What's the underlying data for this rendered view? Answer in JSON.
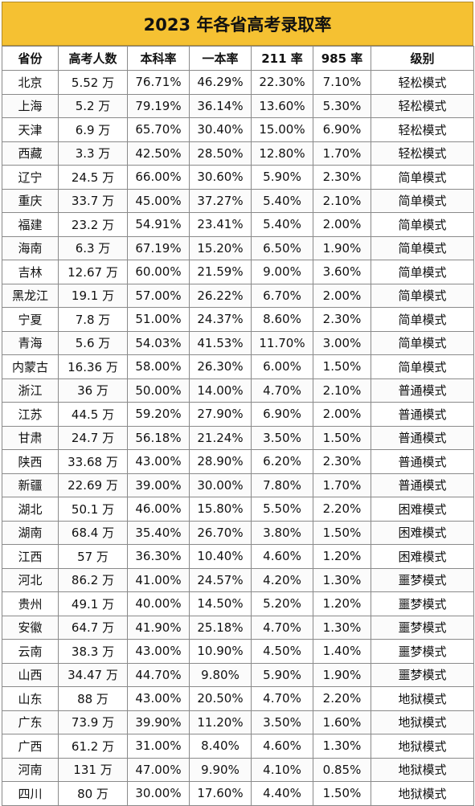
{
  "title": "2023 年各省高考录取率",
  "columns": [
    "省份",
    "高考人数",
    "本科率",
    "一本率",
    "211 率",
    "985 率",
    "级别"
  ],
  "rows": [
    [
      "北京",
      "5.52 万",
      "76.71%",
      "46.29%",
      "22.30%",
      "7.10%",
      "轻松模式"
    ],
    [
      "上海",
      "5.2 万",
      "79.19%",
      "36.14%",
      "13.60%",
      "5.30%",
      "轻松模式"
    ],
    [
      "天津",
      "6.9 万",
      "65.70%",
      "30.40%",
      "15.00%",
      "6.90%",
      "轻松模式"
    ],
    [
      "西藏",
      "3.3 万",
      "42.50%",
      "28.50%",
      "12.80%",
      "1.70%",
      "轻松模式"
    ],
    [
      "辽宁",
      "24.5 万",
      "66.00%",
      "30.60%",
      "5.90%",
      "2.30%",
      "简单模式"
    ],
    [
      "重庆",
      "33.7 万",
      "45.00%",
      "37.27%",
      "5.40%",
      "2.10%",
      "简单模式"
    ],
    [
      "福建",
      "23.2 万",
      "54.91%",
      "23.41%",
      "5.40%",
      "2.00%",
      "简单模式"
    ],
    [
      "海南",
      "6.3 万",
      "67.19%",
      "15.20%",
      "6.50%",
      "1.90%",
      "简单模式"
    ],
    [
      "吉林",
      "12.67 万",
      "60.00%",
      "21.59%",
      "9.00%",
      "3.60%",
      "简单模式"
    ],
    [
      "黑龙江",
      "19.1 万",
      "57.00%",
      "26.22%",
      "6.70%",
      "2.00%",
      "简单模式"
    ],
    [
      "宁夏",
      "7.8 万",
      "51.00%",
      "24.37%",
      "8.60%",
      "2.30%",
      "简单模式"
    ],
    [
      "青海",
      "5.6 万",
      "54.03%",
      "41.53%",
      "11.70%",
      "3.00%",
      "简单模式"
    ],
    [
      "内蒙古",
      "16.36 万",
      "58.00%",
      "26.30%",
      "6.00%",
      "1.50%",
      "简单模式"
    ],
    [
      "浙江",
      "36 万",
      "50.00%",
      "14.00%",
      "4.70%",
      "2.10%",
      "普通模式"
    ],
    [
      "江苏",
      "44.5 万",
      "59.20%",
      "27.90%",
      "6.90%",
      "2.00%",
      "普通模式"
    ],
    [
      "甘肃",
      "24.7 万",
      "56.18%",
      "21.24%",
      "3.50%",
      "1.50%",
      "普通模式"
    ],
    [
      "陕西",
      "33.68 万",
      "43.00%",
      "28.90%",
      "6.20%",
      "2.30%",
      "普通模式"
    ],
    [
      "新疆",
      "22.69 万",
      "39.00%",
      "30.00%",
      "7.80%",
      "1.70%",
      "普通模式"
    ],
    [
      "湖北",
      "50.1 万",
      "46.00%",
      "15.80%",
      "5.50%",
      "2.20%",
      "困难模式"
    ],
    [
      "湖南",
      "68.4 万",
      "35.40%",
      "26.70%",
      "3.80%",
      "1.50%",
      "困难模式"
    ],
    [
      "江西",
      "57 万",
      "36.30%",
      "10.40%",
      "4.60%",
      "1.20%",
      "困难模式"
    ],
    [
      "河北",
      "86.2 万",
      "41.00%",
      "24.57%",
      "4.20%",
      "1.30%",
      "噩梦模式"
    ],
    [
      "贵州",
      "49.1 万",
      "40.00%",
      "14.50%",
      "5.20%",
      "1.20%",
      "噩梦模式"
    ],
    [
      "安徽",
      "64.7 万",
      "41.90%",
      "25.18%",
      "4.70%",
      "1.30%",
      "噩梦模式"
    ],
    [
      "云南",
      "38.3 万",
      "43.00%",
      "10.90%",
      "4.50%",
      "1.40%",
      "噩梦模式"
    ],
    [
      "山西",
      "34.47 万",
      "44.70%",
      "9.80%",
      "5.90%",
      "1.90%",
      "噩梦模式"
    ],
    [
      "山东",
      "88 万",
      "43.00%",
      "20.50%",
      "4.70%",
      "2.20%",
      "地狱模式"
    ],
    [
      "广东",
      "73.9 万",
      "39.90%",
      "11.20%",
      "3.50%",
      "1.60%",
      "地狱模式"
    ],
    [
      "广西",
      "61.2 万",
      "31.00%",
      "8.40%",
      "4.60%",
      "1.30%",
      "地狱模式"
    ],
    [
      "河南",
      "131 万",
      "47.00%",
      "9.90%",
      "4.10%",
      "0.85%",
      "地狱模式"
    ],
    [
      "四川",
      "80 万",
      "30.00%",
      "17.60%",
      "4.40%",
      "1.50%",
      "地狱模式"
    ]
  ],
  "colors": {
    "title_bg": "#f5c132",
    "border": "#8a8a8a"
  }
}
